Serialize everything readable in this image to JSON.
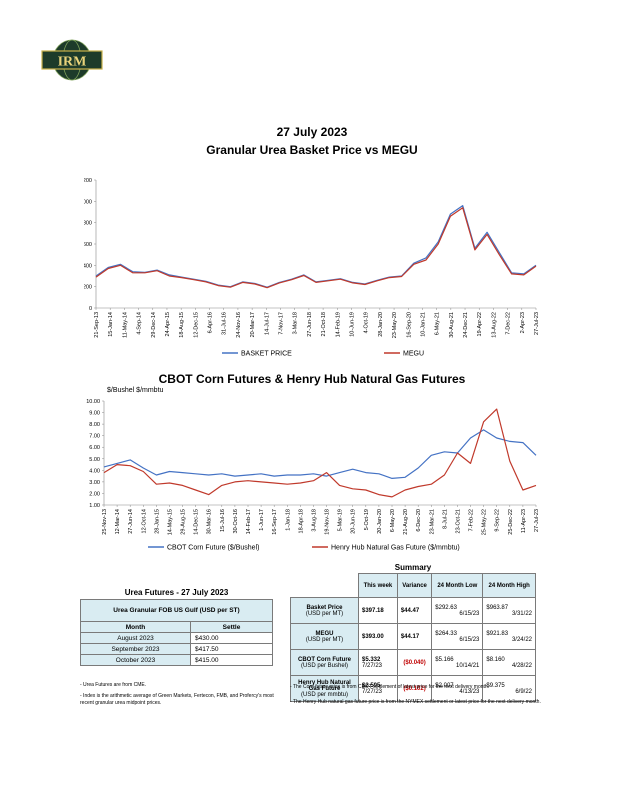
{
  "logo": {
    "text": "IRM"
  },
  "header": {
    "date": "27 July 2023",
    "title": "Granular Urea Basket Price vs MEGU"
  },
  "chart1": {
    "type": "line",
    "ylim": [
      0,
      1200
    ],
    "yticks": [
      "0",
      "200",
      "400",
      "600",
      "800",
      "1000",
      "1200"
    ],
    "xticks": [
      "21-Sep-13",
      "15-Jan-14",
      "11-May-14",
      "4-Sep-14",
      "29-Dec-14",
      "24-Apr-15",
      "18-Aug-15",
      "12-Dec-15",
      "6-Apr-16",
      "31-Jul-16",
      "24-Nov-16",
      "20-Mar-17",
      "14-Jul-17",
      "7-Nov-17",
      "3-Mar-18",
      "27-Jun-18",
      "21-Oct-18",
      "14-Feb-19",
      "10-Jun-19",
      "4-Oct-19",
      "28-Jan-20",
      "23-May-20",
      "16-Sep-20",
      "10-Jan-21",
      "6-May-21",
      "30-Aug-21",
      "24-Dec-21",
      "19-Apr-22",
      "13-Aug-22",
      "7-Dec-22",
      "2-Apr-23",
      "27-Jul-23"
    ],
    "series": [
      {
        "name": "BASKET PRICE",
        "color": "#4472c4",
        "values": [
          300,
          380,
          410,
          340,
          335,
          355,
          310,
          290,
          270,
          250,
          215,
          200,
          245,
          230,
          195,
          240,
          270,
          310,
          245,
          260,
          275,
          240,
          225,
          260,
          290,
          300,
          420,
          470,
          620,
          880,
          960,
          560,
          710,
          520,
          330,
          320,
          400
        ]
      },
      {
        "name": "MEGU",
        "color": "#c0392b",
        "values": [
          290,
          370,
          400,
          330,
          330,
          350,
          300,
          285,
          265,
          245,
          210,
          195,
          240,
          225,
          190,
          235,
          265,
          305,
          240,
          255,
          270,
          235,
          220,
          255,
          285,
          295,
          410,
          450,
          600,
          860,
          940,
          545,
          690,
          500,
          320,
          310,
          393
        ]
      }
    ]
  },
  "chart2": {
    "title": "CBOT Corn Futures & Henry Hub Natural Gas Futures",
    "ylabels": "$/Bushel   $/mmbtu",
    "type": "line",
    "ylim": [
      1,
      10
    ],
    "yticks": [
      "1.00",
      "2.00",
      "3.00",
      "4.00",
      "5.00",
      "6.00",
      "7.00",
      "8.00",
      "9.00",
      "10.00"
    ],
    "xticks": [
      "25-Nov-13",
      "12-Mar-14",
      "27-Jun-14",
      "12-Oct-14",
      "28-Jan-15",
      "14-May-15",
      "29-Aug-15",
      "14-Dec-15",
      "30-Mar-16",
      "15-Jul-16",
      "30-Oct-16",
      "14-Feb-17",
      "1-Jun-17",
      "16-Sep-17",
      "1-Jan-18",
      "18-Apr-18",
      "3-Aug-18",
      "19-Nov-18",
      "5-Mar-19",
      "20-Jun-19",
      "5-Oct-19",
      "20-Jan-20",
      "6-May-20",
      "21-Aug-20",
      "6-Dec-20",
      "23-Mar-21",
      "8-Jul-21",
      "23-Oct-21",
      "7-Feb-22",
      "25-May-22",
      "9-Sep-22",
      "25-Dec-22",
      "11-Apr-23",
      "27-Jul-23"
    ],
    "series": [
      {
        "name": "CBOT Corn Future ($/Bushel)",
        "color": "#4472c4",
        "values": [
          4.3,
          4.6,
          4.9,
          4.2,
          3.6,
          3.9,
          3.8,
          3.7,
          3.6,
          3.7,
          3.5,
          3.6,
          3.7,
          3.5,
          3.6,
          3.6,
          3.7,
          3.5,
          3.8,
          4.1,
          3.8,
          3.7,
          3.3,
          3.4,
          4.2,
          5.3,
          5.6,
          5.5,
          6.8,
          7.5,
          6.8,
          6.5,
          6.4,
          5.3
        ]
      },
      {
        "name": "Henry Hub Natural Gas Future ($/mmbtu)",
        "color": "#c0392b",
        "values": [
          3.8,
          4.5,
          4.4,
          3.9,
          2.8,
          2.9,
          2.7,
          2.3,
          1.9,
          2.7,
          3.0,
          3.1,
          3.0,
          2.9,
          2.8,
          2.9,
          3.1,
          3.8,
          2.7,
          2.4,
          2.3,
          1.9,
          1.7,
          2.3,
          2.6,
          2.8,
          3.6,
          5.5,
          4.6,
          8.2,
          9.3,
          4.8,
          2.3,
          2.7
        ]
      }
    ]
  },
  "futures": {
    "title": "Urea Futures - 27 July 2023",
    "header": "Urea Granular FOB US Gulf (USD per ST)",
    "col_month": "Month",
    "col_settle": "Settle",
    "rows": [
      {
        "month": "August 2023",
        "settle": "$430.00"
      },
      {
        "month": "September 2023",
        "settle": "$417.50"
      },
      {
        "month": "October 2023",
        "settle": "$415.00"
      }
    ],
    "notes": [
      "- Urea Futures are from CME.",
      "- Index is the arithmetic average of Green Markets, Fertecon, FMB, and Profercy's most recent granular urea midpoint prices."
    ]
  },
  "summary": {
    "title": "Summary",
    "cols": [
      "This week",
      "Variance",
      "24 Month Low",
      "24 Month High"
    ],
    "rows": [
      {
        "label": "Basket Price",
        "unit": "(USD per MT)",
        "this_week": "$397.18",
        "week_date": "",
        "variance": "$44.47",
        "var_neg": false,
        "low": "$292.63",
        "low_date": "6/15/23",
        "high": "$963.87",
        "high_date": "3/31/22"
      },
      {
        "label": "MEGU",
        "unit": "(USD per MT)",
        "this_week": "$393.00",
        "week_date": "",
        "variance": "$44.17",
        "var_neg": false,
        "low": "$264.33",
        "low_date": "6/15/23",
        "high": "$921.83",
        "high_date": "3/24/22"
      },
      {
        "label": "CBOT Corn Future",
        "unit": "(USD per Bushel)",
        "this_week": "$5.332",
        "week_date": "7/27/23",
        "variance": "($0.040)",
        "var_neg": true,
        "low": "$5.166",
        "low_date": "10/14/21",
        "high": "$8.160",
        "high_date": "4/28/22"
      },
      {
        "label": "Henry Hub Natural Gas Future",
        "unit": "(USD per mmbtu)",
        "this_week": "$2.595",
        "week_date": "7/27/23",
        "variance": "($0.102)",
        "var_neg": true,
        "low": "$2.007",
        "low_date": "4/13/23",
        "high": "$9.375",
        "high_date": "6/9/22"
      }
    ],
    "notes": [
      "- The Corn future price is from CBOT settlement of latest price for the next delivery month.",
      "- The Henry Hub natural gas future price is from the NYMEX settlement or latest price for the next delivery month."
    ]
  }
}
